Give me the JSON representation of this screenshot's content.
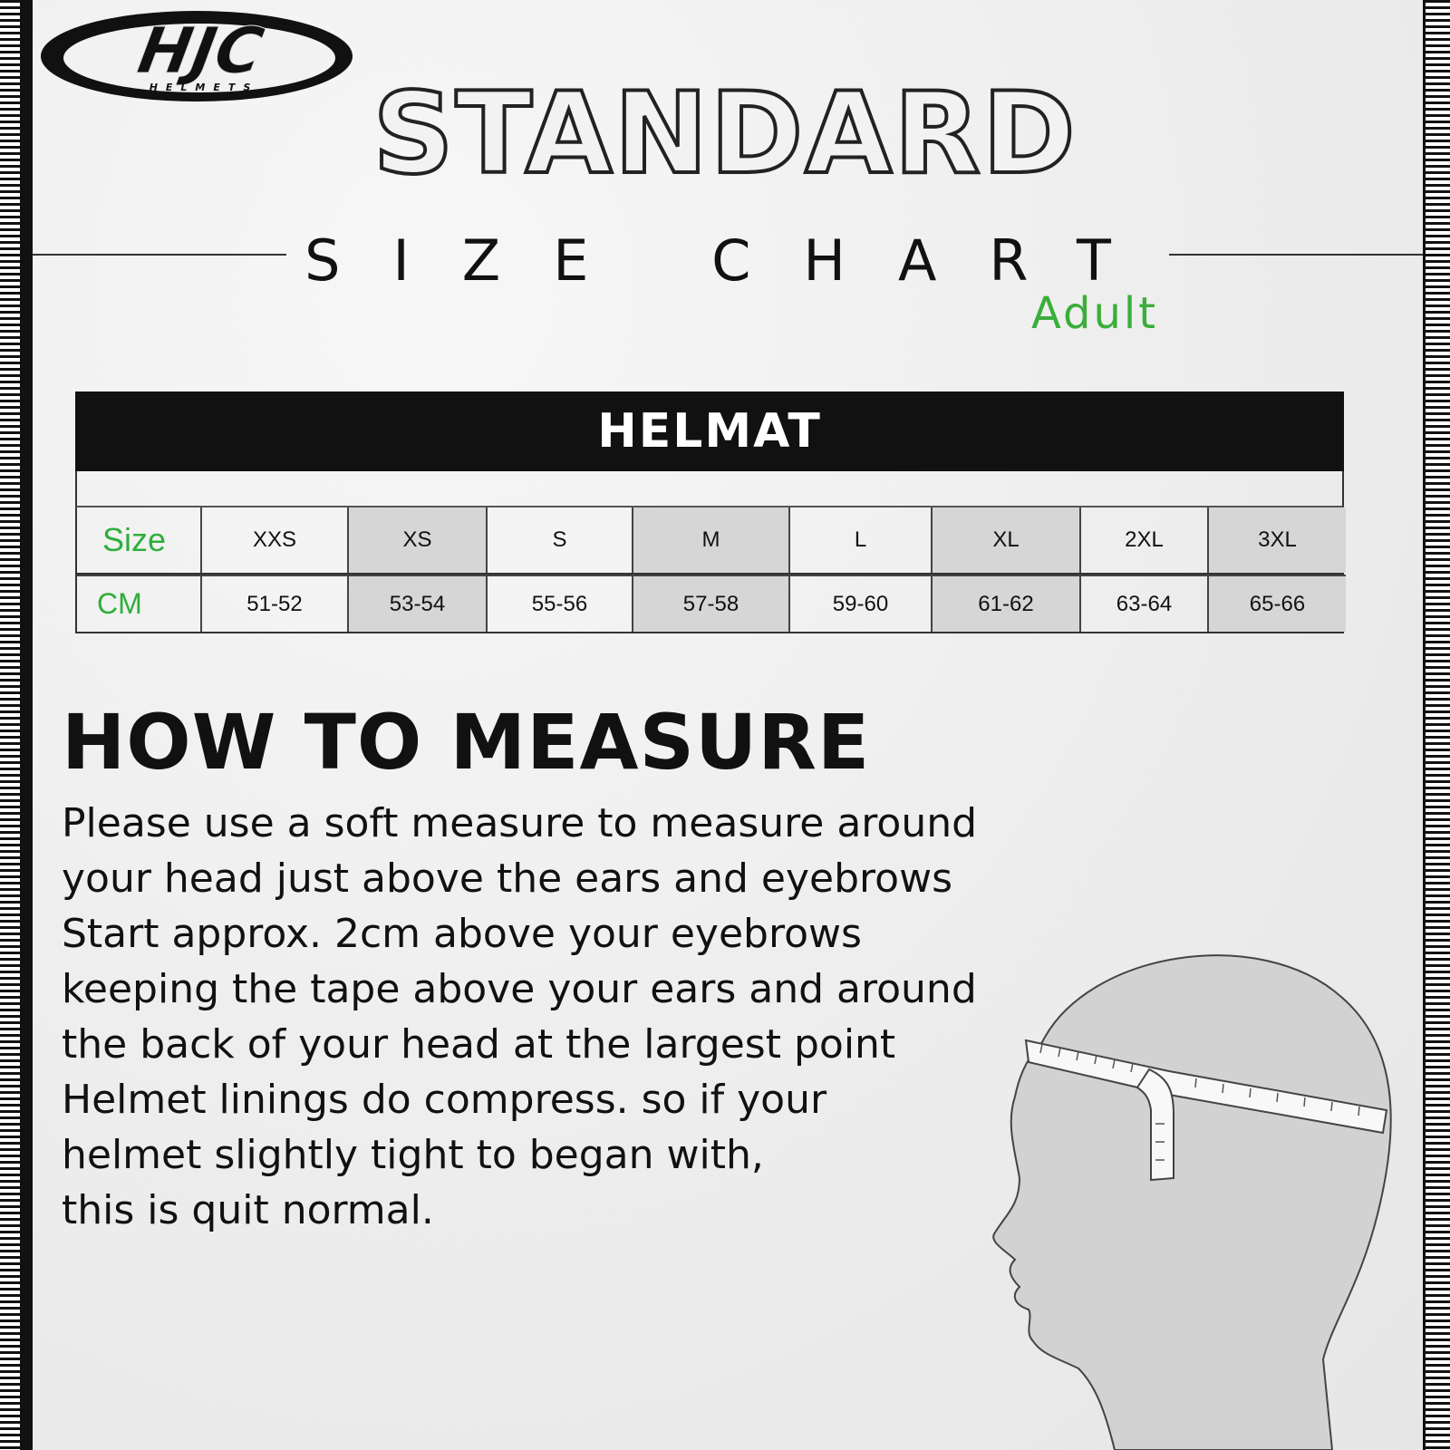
{
  "logo": {
    "brand": "HJC",
    "tagline": "HELMETS"
  },
  "header": {
    "title": "STANDARD",
    "subtitle": "SIZE CHART",
    "audience": "Adult"
  },
  "table": {
    "title": "HELMAT",
    "row_labels": [
      "Size",
      "CM"
    ],
    "sizes": [
      "XXS",
      "XS",
      "S",
      "M",
      "L",
      "XL",
      "2XL",
      "3XL"
    ],
    "cm": [
      "51-52",
      "53-54",
      "55-56",
      "57-58",
      "59-60",
      "61-62",
      "63-64",
      "65-66"
    ]
  },
  "measure": {
    "heading": "HOW TO MEASURE",
    "lines": [
      "Please use a soft measure to measure around",
      "your head just above the ears and eyebrows",
      "Start approx. 2cm above your eyebrows",
      "keeping the tape above your ears and around",
      "the back of your head at the largest point",
      "Helmet linings do compress. so if your",
      "helmet slightly tight to began with,",
      "this is quit normal."
    ]
  },
  "colors": {
    "accent": "#2fae3a",
    "header_bg": "#111111",
    "shade": "#d6d6d6"
  },
  "icons": {
    "illustration": "head-with-measuring-tape"
  }
}
